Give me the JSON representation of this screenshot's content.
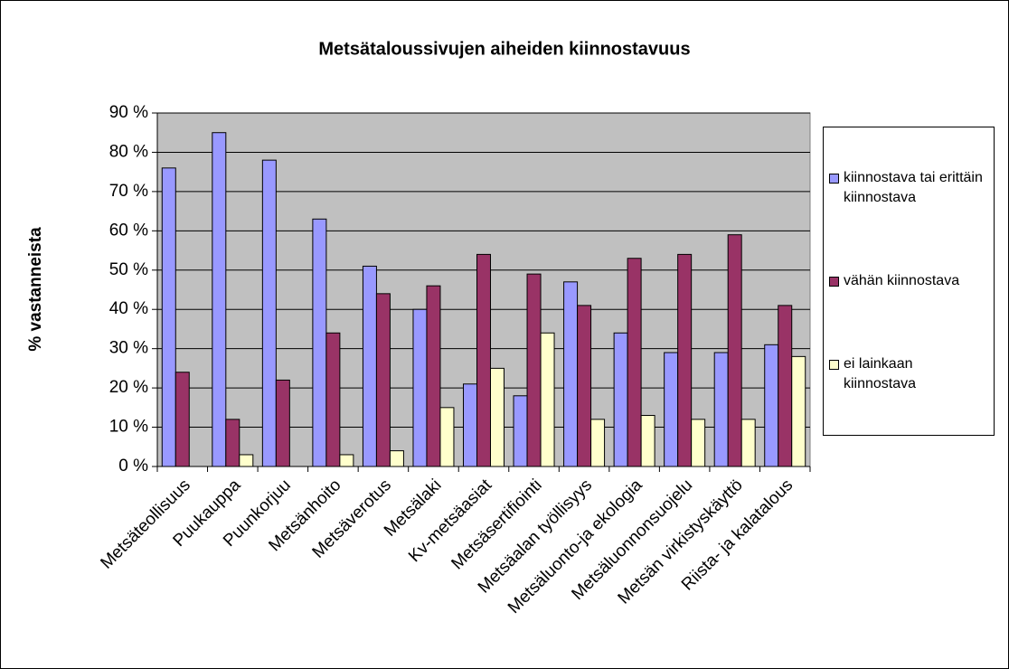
{
  "chart_data": {
    "type": "bar",
    "title": "Metsätaloussivujen aiheiden kiinnostavuus",
    "y_label": "% vastanneista",
    "categories": [
      "Metsäteollisuus",
      "Puukauppa",
      "Puunkorjuu",
      "Metsänhoito",
      "Metsäverotus",
      "Metsälaki",
      "Kv-metsäasiat",
      "Metsäsertifiointi",
      "Metsäalan työllisyys",
      "Metsäluonto-ja ekologia",
      "Metsäluonnonsuojelu",
      "Metsän virkistyskäyttö",
      "Riista- ja kalatalous"
    ],
    "series": [
      {
        "name": "kiinnostava tai erittäin kiinnostava",
        "color": "#9999ff",
        "values": [
          76,
          85,
          78,
          63,
          51,
          40,
          21,
          18,
          47,
          34,
          29,
          29,
          31
        ]
      },
      {
        "name": "vähän kiinnostava",
        "color": "#993366",
        "values": [
          24,
          12,
          22,
          34,
          44,
          46,
          54,
          49,
          41,
          53,
          54,
          59,
          41
        ]
      },
      {
        "name": "ei lainkaan kiinnostava",
        "color": "#ffffcc",
        "values": [
          0,
          3,
          0,
          3,
          4,
          15,
          25,
          34,
          12,
          13,
          12,
          12,
          28
        ]
      }
    ],
    "ylim": [
      0,
      90
    ],
    "yticks": [
      {
        "value": 0,
        "label": "0 %"
      },
      {
        "value": 10,
        "label": "10 %"
      },
      {
        "value": 20,
        "label": "20 %"
      },
      {
        "value": 30,
        "label": "30 %"
      },
      {
        "value": 40,
        "label": "40 %"
      },
      {
        "value": 50,
        "label": "50 %"
      },
      {
        "value": 60,
        "label": "60 %"
      },
      {
        "value": 70,
        "label": "70 %"
      },
      {
        "value": 80,
        "label": "80 %"
      },
      {
        "value": 90,
        "label": "90 %"
      }
    ],
    "grid": true,
    "plot_background": "#c0c0c0"
  }
}
